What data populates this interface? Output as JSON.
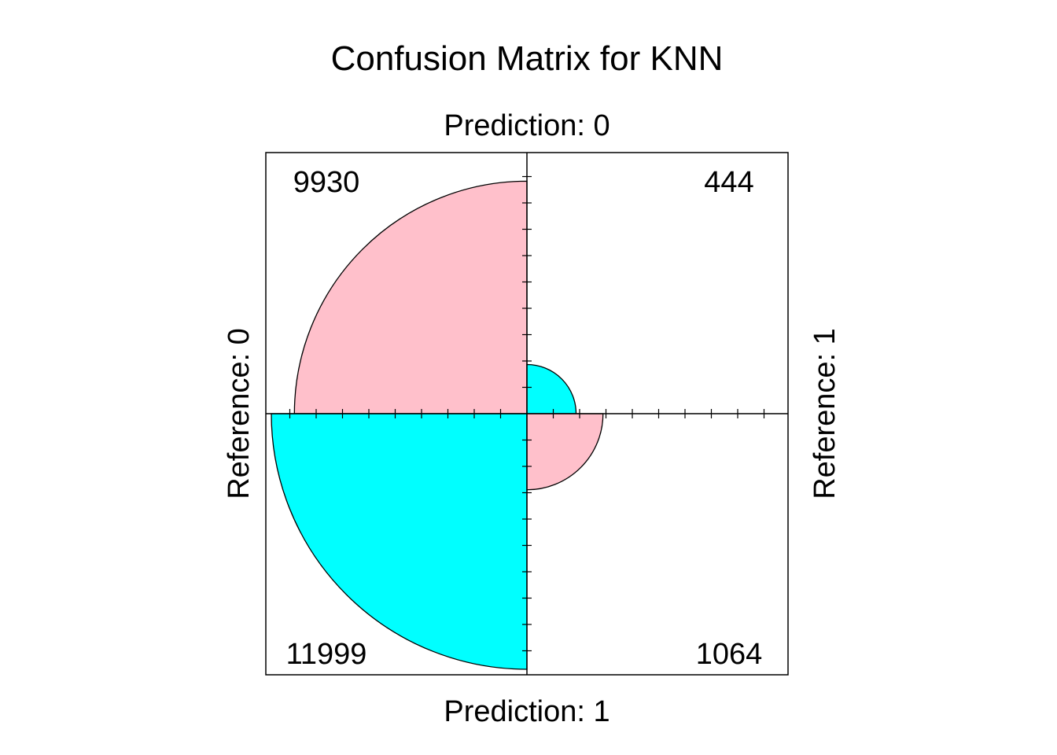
{
  "chart_data": {
    "type": "fourfold",
    "title": "Confusion Matrix for KNN",
    "top_label": "Prediction: 0",
    "bottom_label": "Prediction: 1",
    "left_label": "Reference: 0",
    "right_label": "Reference: 1",
    "cells": [
      {
        "prediction": "0",
        "reference": "0",
        "count": 9930,
        "count_text": "9930",
        "quadrant": "top-left",
        "color": "#FFC0CB"
      },
      {
        "prediction": "0",
        "reference": "1",
        "count": 444,
        "count_text": "444",
        "quadrant": "top-right",
        "color": "#00FFFF"
      },
      {
        "prediction": "1",
        "reference": "0",
        "count": 11999,
        "count_text": "11999",
        "quadrant": "bottom-left",
        "color": "#00FFFF"
      },
      {
        "prediction": "1",
        "reference": "1",
        "count": 1064,
        "count_text": "1064",
        "quadrant": "bottom-right",
        "color": "#FFC0CB"
      }
    ]
  }
}
